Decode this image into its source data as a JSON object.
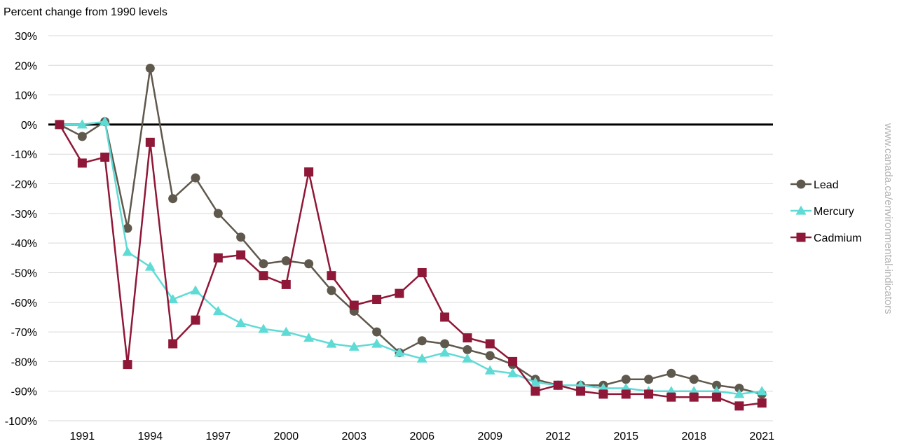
{
  "chart_data": {
    "type": "line",
    "ylabel": "Percent change from 1990 levels",
    "source": "www.canada.ca/environmental-indicators",
    "x": [
      1990,
      1991,
      1992,
      1993,
      1994,
      1995,
      1996,
      1997,
      1998,
      1999,
      2000,
      2001,
      2002,
      2003,
      2004,
      2005,
      2006,
      2007,
      2008,
      2009,
      2010,
      2011,
      2012,
      2013,
      2014,
      2015,
      2016,
      2017,
      2018,
      2019,
      2020,
      2021
    ],
    "x_tick_labels": [
      "1991",
      "1994",
      "1997",
      "2000",
      "2003",
      "2006",
      "2009",
      "2012",
      "2015",
      "2018",
      "2021"
    ],
    "x_tick_values": [
      1991,
      1994,
      1997,
      2000,
      2003,
      2006,
      2009,
      2012,
      2015,
      2018,
      2021
    ],
    "y_tick_labels": [
      "30%",
      "20%",
      "10%",
      "0%",
      "-10%",
      "-20%",
      "-30%",
      "-40%",
      "-50%",
      "-60%",
      "-70%",
      "-80%",
      "-90%",
      "-100%"
    ],
    "y_tick_values": [
      30,
      20,
      10,
      0,
      -10,
      -20,
      -30,
      -40,
      -50,
      -60,
      -70,
      -80,
      -90,
      -100
    ],
    "ylim": [
      -100,
      30
    ],
    "grid": true,
    "legend_position": "right",
    "series": [
      {
        "name": "Lead",
        "color": "#5f584c",
        "marker": "circle",
        "values": [
          0,
          -4,
          1,
          -35,
          19,
          -25,
          -18,
          -30,
          -38,
          -47,
          -46,
          -47,
          -56,
          -63,
          -70,
          -77,
          -73,
          -74,
          -76,
          -78,
          -81,
          -86,
          -88,
          -88,
          -88,
          -86,
          -86,
          -84,
          -86,
          -88,
          -89,
          -91
        ]
      },
      {
        "name": "Mercury",
        "color": "#5fdbd6",
        "marker": "triangle",
        "values": [
          0,
          0,
          1,
          -43,
          -48,
          -59,
          -56,
          -63,
          -67,
          -69,
          -70,
          -72,
          -74,
          -75,
          -74,
          -77,
          -79,
          -77,
          -79,
          -83,
          -84,
          -87,
          -88,
          -88,
          -89,
          -89,
          -90,
          -90,
          -90,
          -90,
          -91,
          -90
        ]
      },
      {
        "name": "Cadmium",
        "color": "#8f1737",
        "marker": "square",
        "values": [
          0,
          -13,
          -11,
          -81,
          -6,
          -74,
          -66,
          -45,
          -44,
          -51,
          -54,
          -16,
          -51,
          -61,
          -59,
          -57,
          -50,
          -65,
          -72,
          -74,
          -80,
          -90,
          -88,
          -90,
          -91,
          -91,
          -91,
          -92,
          -92,
          -92,
          -95,
          -94
        ]
      }
    ]
  }
}
